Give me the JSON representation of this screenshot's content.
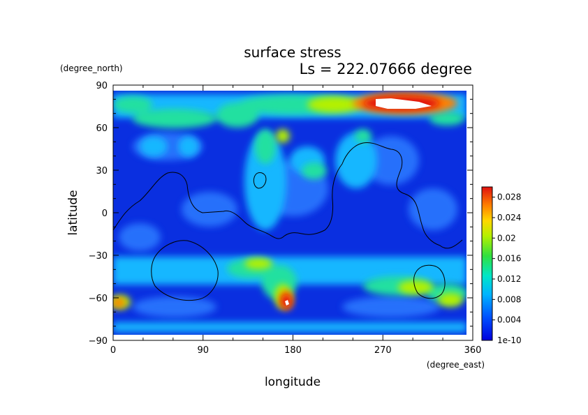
{
  "chart_data": {
    "type": "heatmap",
    "title": "surface stress",
    "subtitle": "Ls = 222.07666 degree",
    "xlabel": "longitude",
    "ylabel": "latitude",
    "x_unit": "(degree_east)",
    "y_unit": "(degree_north)",
    "xlim": [
      0,
      360
    ],
    "ylim": [
      -90,
      90
    ],
    "x_ticks": [
      "0",
      "90",
      "180",
      "270",
      "360"
    ],
    "y_ticks": [
      "90",
      "60",
      "30",
      "0",
      "−30",
      "−60",
      "−90"
    ],
    "grid": false,
    "legend": "right",
    "colorbar": {
      "min_label": "1e-10",
      "ticks": [
        "0.004",
        "0.008",
        "0.012",
        "0.016",
        "0.02",
        "0.024",
        "0.028"
      ],
      "range": [
        0,
        0.03
      ]
    },
    "hotspots": [
      {
        "lon": 290,
        "lat": 79,
        "value": 0.032,
        "note": "saturated (white) region"
      },
      {
        "lon": 175,
        "lat": -62,
        "value": 0.03
      },
      {
        "lon": 250,
        "lat": 80,
        "value": 0.026
      },
      {
        "lon": 5,
        "lat": -63,
        "value": 0.024
      },
      {
        "lon": 340,
        "lat": -62,
        "value": 0.022
      },
      {
        "lon": 305,
        "lat": -53,
        "value": 0.02
      },
      {
        "lon": 150,
        "lat": -38,
        "value": 0.016
      },
      {
        "lon": 85,
        "lat": 73,
        "value": 0.014
      },
      {
        "lon": 170,
        "lat": 53,
        "value": 0.016
      },
      {
        "lon": 355,
        "lat": 75,
        "value": 0.014
      }
    ],
    "colors": {
      "low": "#0000dd",
      "background_field": "#0f3fe6",
      "high": "#e01010",
      "saturated": "#ffffff"
    }
  }
}
